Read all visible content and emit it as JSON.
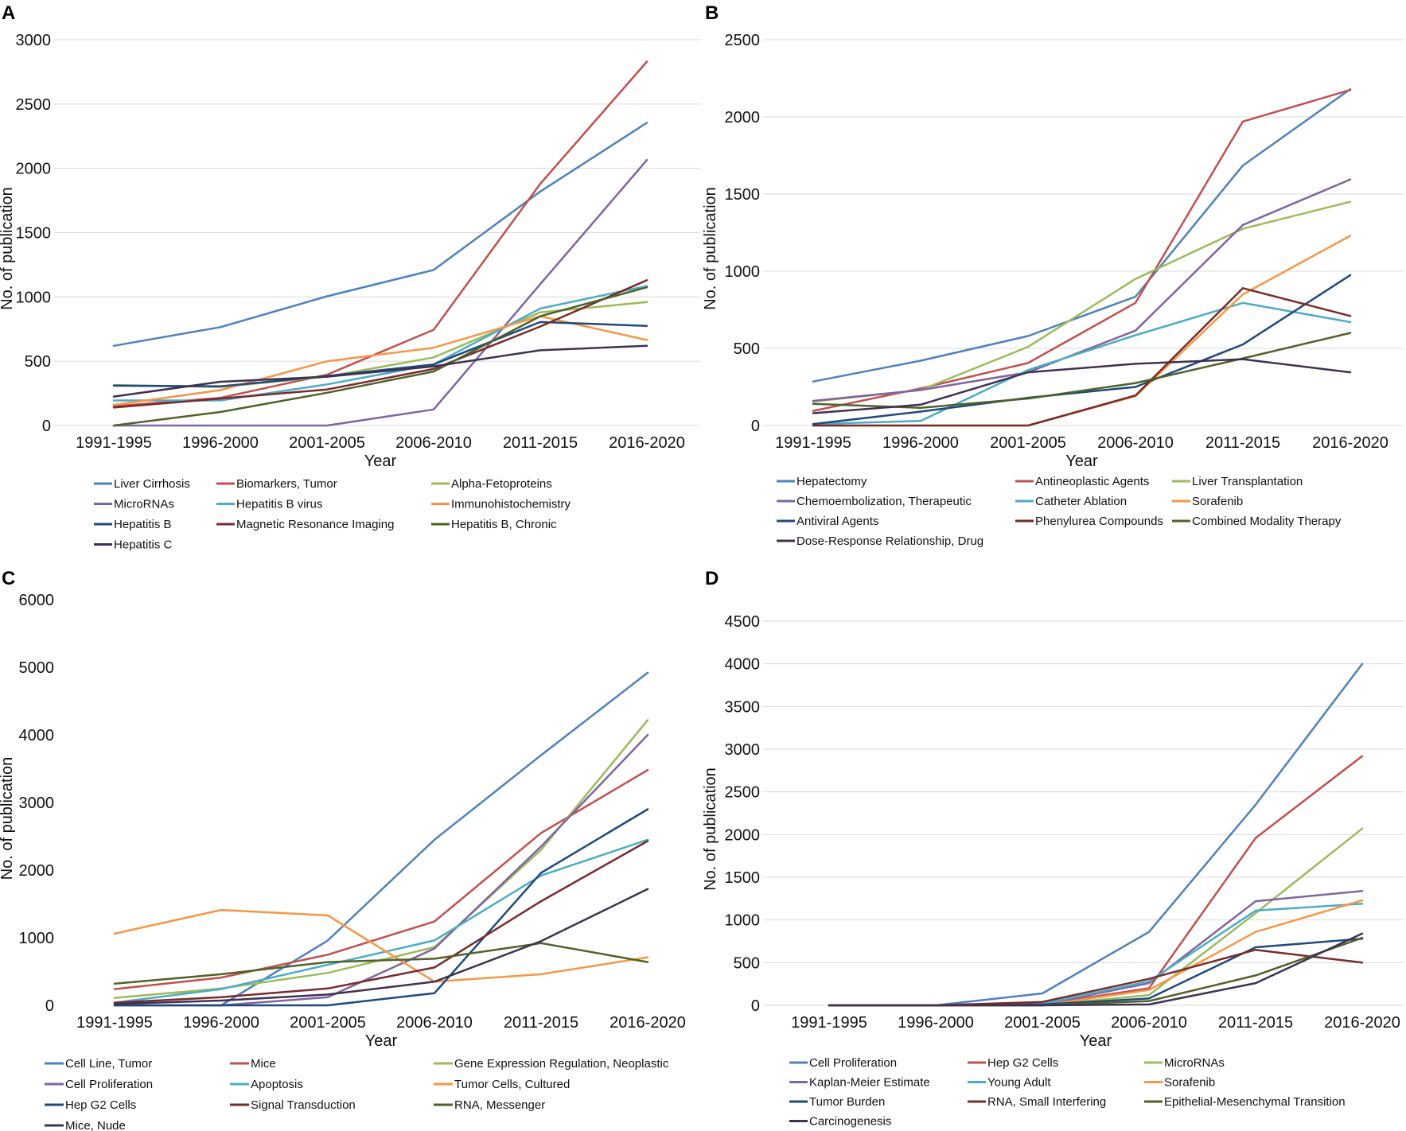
{
  "chart_data": [
    {
      "panel": "A",
      "type": "line",
      "xlabel": "Year",
      "ylabel": "No. of publication",
      "ylim": [
        0,
        3000
      ],
      "yticks": [
        0,
        500,
        1000,
        1500,
        2000,
        2500,
        3000
      ],
      "categories": [
        "1991-1995",
        "1996-2000",
        "2001-2005",
        "2006-2010",
        "2011-2015",
        "2016-2020"
      ],
      "legend_position": "bottom",
      "grid": true,
      "series": [
        {
          "name": "Liver Cirrhosis",
          "color": "#4f81bd",
          "values": [
            620,
            765,
            1005,
            1210,
            1820,
            2355
          ]
        },
        {
          "name": "Biomarkers, Tumor",
          "color": "#c0504d",
          "values": [
            150,
            215,
            395,
            745,
            1880,
            2830
          ]
        },
        {
          "name": "Alpha-Fetoproteins",
          "color": "#9bbb59",
          "values": [
            315,
            300,
            380,
            530,
            880,
            960
          ]
        },
        {
          "name": "MicroRNAs",
          "color": "#8064a2",
          "values": [
            0,
            0,
            0,
            125,
            1100,
            2065
          ]
        },
        {
          "name": "Hepatitis B virus",
          "color": "#4bacc6",
          "values": [
            195,
            195,
            320,
            475,
            910,
            1085
          ]
        },
        {
          "name": "Immunohistochemistry",
          "color": "#f79646",
          "values": [
            160,
            275,
            500,
            605,
            850,
            665
          ]
        },
        {
          "name": "Hepatitis B",
          "color": "#1f497d",
          "values": [
            310,
            305,
            385,
            475,
            805,
            775
          ]
        },
        {
          "name": "Magnetic Resonance Imaging",
          "color": "#772c2a",
          "values": [
            140,
            210,
            280,
            440,
            770,
            1130
          ]
        },
        {
          "name": "Hepatitis B, Chronic",
          "color": "#4f6228",
          "values": [
            0,
            105,
            255,
            420,
            850,
            1075
          ]
        },
        {
          "name": "Hepatitis C",
          "color": "#403152",
          "values": [
            225,
            340,
            380,
            460,
            585,
            620
          ]
        }
      ]
    },
    {
      "panel": "B",
      "type": "line",
      "xlabel": "Year",
      "ylabel": "No. of publication",
      "ylim": [
        0,
        2500
      ],
      "yticks": [
        0,
        500,
        1000,
        1500,
        2000,
        2500
      ],
      "categories": [
        "1991-1995",
        "1996-2000",
        "2001-2005",
        "2006-2010",
        "2011-2015",
        "2016-2020"
      ],
      "legend_position": "bottom",
      "grid": true,
      "series": [
        {
          "name": "Hepatectomy",
          "color": "#4f81bd",
          "values": [
            285,
            420,
            580,
            835,
            1685,
            2180
          ]
        },
        {
          "name": "Antineoplastic Agents",
          "color": "#c0504d",
          "values": [
            95,
            240,
            405,
            795,
            1970,
            2175
          ]
        },
        {
          "name": "Liver Transplantation",
          "color": "#9bbb59",
          "values": [
            155,
            230,
            510,
            950,
            1275,
            1450
          ]
        },
        {
          "name": "Chemoembolization, Therapeutic",
          "color": "#8064a2",
          "values": [
            160,
            230,
            345,
            615,
            1300,
            1595
          ]
        },
        {
          "name": "Catheter Ablation",
          "color": "#4bacc6",
          "values": [
            10,
            30,
            360,
            585,
            795,
            670
          ]
        },
        {
          "name": "Sorafenib",
          "color": "#f79646",
          "values": [
            0,
            0,
            0,
            190,
            850,
            1230
          ]
        },
        {
          "name": "Antiviral Agents",
          "color": "#1f497d",
          "values": [
            10,
            90,
            180,
            250,
            525,
            975
          ]
        },
        {
          "name": "Phenylurea Compounds",
          "color": "#772c2a",
          "values": [
            0,
            0,
            0,
            195,
            890,
            710
          ]
        },
        {
          "name": "Combined Modality Therapy",
          "color": "#4f6228",
          "values": [
            140,
            115,
            175,
            275,
            435,
            600
          ]
        },
        {
          "name": "Dose-Response Relationship, Drug",
          "color": "#403152",
          "values": [
            80,
            135,
            345,
            400,
            430,
            345
          ]
        }
      ]
    },
    {
      "panel": "C",
      "type": "line",
      "xlabel": "Year",
      "ylabel": "No. of publication",
      "ylim": [
        0,
        6000
      ],
      "yticks": [
        0,
        1000,
        2000,
        3000,
        4000,
        5000,
        6000
      ],
      "categories": [
        "1991-1995",
        "1996-2000",
        "2001-2005",
        "2006-2010",
        "2011-2015",
        "2016-2020"
      ],
      "legend_position": "bottom",
      "grid": false,
      "series": [
        {
          "name": "Cell Line, Tumor",
          "color": "#4f81bd",
          "values": [
            0,
            0,
            960,
            2450,
            3700,
            4920
          ]
        },
        {
          "name": "Mice",
          "color": "#c0504d",
          "values": [
            240,
            410,
            750,
            1240,
            2550,
            3480
          ]
        },
        {
          "name": "Gene Expression Regulation, Neoplastic",
          "color": "#9bbb59",
          "values": [
            110,
            250,
            480,
            860,
            2300,
            4220
          ]
        },
        {
          "name": "Cell Proliferation",
          "color": "#8064a2",
          "values": [
            0,
            0,
            120,
            840,
            2350,
            4000
          ]
        },
        {
          "name": "Apoptosis",
          "color": "#4bacc6",
          "values": [
            40,
            240,
            600,
            960,
            1920,
            2450
          ]
        },
        {
          "name": "Tumor Cells, Cultured",
          "color": "#f79646",
          "values": [
            1060,
            1410,
            1330,
            350,
            460,
            710
          ]
        },
        {
          "name": "Hep G2 Cells",
          "color": "#1f497d",
          "values": [
            0,
            0,
            0,
            180,
            1960,
            2900
          ]
        },
        {
          "name": "Signal Transduction",
          "color": "#772c2a",
          "values": [
            40,
            120,
            250,
            560,
            1540,
            2430
          ]
        },
        {
          "name": "RNA, Messenger",
          "color": "#4f6228",
          "values": [
            320,
            460,
            640,
            690,
            920,
            640
          ]
        },
        {
          "name": "Mice, Nude",
          "color": "#403152",
          "values": [
            20,
            70,
            160,
            350,
            950,
            1720
          ]
        }
      ]
    },
    {
      "panel": "D",
      "type": "line",
      "xlabel": "Year",
      "ylabel": "No. of publication",
      "ylim": [
        0,
        4500
      ],
      "yticks": [
        0,
        500,
        1000,
        1500,
        2000,
        2500,
        3000,
        3500,
        4000,
        4500
      ],
      "categories": [
        "1991-1995",
        "1996-2000",
        "2001-2005",
        "2006-2010",
        "2011-2015",
        "2016-2020"
      ],
      "legend_position": "bottom",
      "grid": true,
      "series": [
        {
          "name": "Cell Proliferation",
          "color": "#4f81bd",
          "values": [
            0,
            0,
            140,
            860,
            2350,
            4000
          ]
        },
        {
          "name": "Hep G2 Cells",
          "color": "#c0504d",
          "values": [
            0,
            0,
            10,
            200,
            1960,
            2920
          ]
        },
        {
          "name": "MicroRNAs",
          "color": "#9bbb59",
          "values": [
            0,
            0,
            0,
            120,
            1080,
            2070
          ]
        },
        {
          "name": "Kaplan-Meier Estimate",
          "color": "#8064a2",
          "values": [
            0,
            0,
            10,
            260,
            1220,
            1340
          ]
        },
        {
          "name": "Young Adult",
          "color": "#4bacc6",
          "values": [
            0,
            0,
            20,
            280,
            1110,
            1190
          ]
        },
        {
          "name": "Sorafenib",
          "color": "#f79646",
          "values": [
            0,
            0,
            0,
            180,
            860,
            1230
          ]
        },
        {
          "name": "Tumor Burden",
          "color": "#1f497d",
          "values": [
            0,
            0,
            10,
            80,
            680,
            780
          ]
        },
        {
          "name": "RNA, Small Interfering",
          "color": "#772c2a",
          "values": [
            0,
            0,
            40,
            310,
            650,
            500
          ]
        },
        {
          "name": "Epithelial-Mesenchymal Transition",
          "color": "#4f6228",
          "values": [
            0,
            0,
            0,
            50,
            350,
            790
          ]
        },
        {
          "name": "Carcinogenesis",
          "color": "#403152",
          "values": [
            0,
            0,
            0,
            10,
            260,
            840
          ]
        }
      ]
    }
  ]
}
